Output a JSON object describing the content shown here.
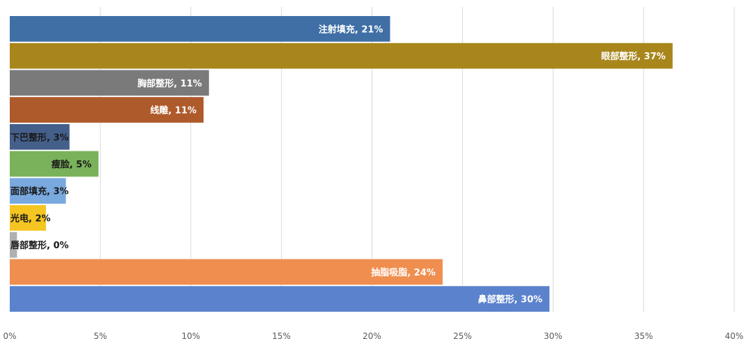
{
  "chart_data": {
    "type": "bar",
    "orientation": "horizontal",
    "title": "",
    "xlabel": "",
    "ylabel": "",
    "xlim": [
      0,
      40
    ],
    "x_ticks": [
      "0%",
      "5%",
      "10%",
      "15%",
      "20%",
      "25%",
      "30%",
      "35%",
      "40%"
    ],
    "grid": true,
    "legend": "none",
    "categories": [
      "注射填充",
      "眼部整形",
      "胸部整形",
      "线雕",
      "下巴整形",
      "瘦脸",
      "面部填充",
      "光电",
      "唇部整形",
      "抽脂吸脂",
      "鼻部整形"
    ],
    "values": [
      21,
      36.6,
      11,
      10.7,
      3.3,
      4.9,
      3.1,
      2,
      0.4,
      23.9,
      29.8
    ],
    "data_labels": [
      "注射填充, 21%",
      "眼部整形, 37%",
      "胸部整形, 11%",
      "线雕, 11%",
      "下巴整形, 3%",
      "瘦脸, 5%",
      "面部填充, 3%",
      "光电, 2%",
      "唇部整形, 0%",
      "抽脂吸脂, 24%",
      "鼻部整形, 30%"
    ],
    "colors": [
      "#3f6fa5",
      "#a8861c",
      "#7a7a7a",
      "#ae5a2b",
      "#445f8a",
      "#79b25a",
      "#79a9de",
      "#f5c521",
      "#b0b0b0",
      "#ef8e4f",
      "#5b82cd"
    ]
  }
}
